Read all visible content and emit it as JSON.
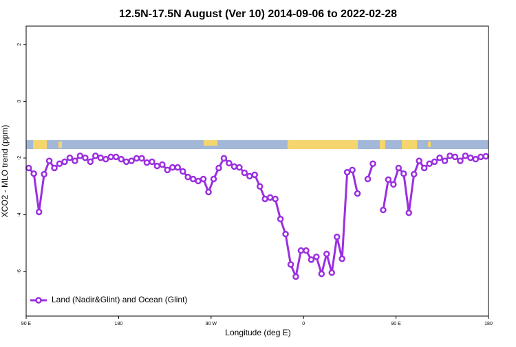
{
  "chart_data": {
    "type": "line",
    "title": "12.5N-17.5N August (Ver 10)   2014-09-06 to 2022-02-28",
    "x_label": "Longitude (deg E)",
    "y_label": "XCO2 - MLO trend (ppm)",
    "x": [
      92.5,
      97.5,
      102.5,
      107.5,
      112.5,
      117.5,
      122.5,
      127.5,
      132.5,
      137.5,
      142.5,
      147.5,
      152.5,
      157.5,
      162.5,
      167.5,
      172.5,
      177.5,
      182.5,
      187.5,
      192.5,
      197.5,
      202.5,
      207.5,
      212.5,
      217.5,
      222.5,
      227.5,
      232.5,
      237.5,
      242.5,
      247.5,
      252.5,
      257.5,
      262.5,
      267.5,
      272.5,
      277.5,
      282.5,
      287.5,
      292.5,
      297.5,
      302.5,
      307.5,
      312.5,
      317.5,
      322.5,
      327.5,
      332.5,
      337.5,
      342.5,
      347.5,
      352.5,
      357.5,
      362.5,
      367.5,
      372.5,
      377.5,
      382.5,
      387.5,
      392.5,
      397.5,
      402.5,
      407.5,
      412.5,
      417.5,
      422.5,
      427.5,
      432.5,
      437.5,
      442.5,
      447.5,
      452.5,
      457.5,
      462.5,
      467.5,
      472.5,
      477.5,
      482.5,
      487.5,
      492.5,
      497.5,
      502.5,
      507.5,
      512.5,
      517.5,
      522.5,
      527.5,
      532.5,
      537.5
    ],
    "series": [
      {
        "name": "Land (Nadir&Glint) and Ocean (Glint)",
        "color": "#9b2fe0",
        "values": [
          -2.35,
          -2.55,
          -3.9,
          -2.57,
          -2.1,
          -2.35,
          -2.2,
          -2.13,
          -1.99,
          -2.1,
          -1.92,
          -1.99,
          -2.13,
          -1.92,
          -1.99,
          -2.04,
          -1.96,
          -1.96,
          -2.04,
          -2.13,
          -2.1,
          -2.01,
          -2.01,
          -2.16,
          -2.13,
          -2.28,
          -2.23,
          -2.42,
          -2.33,
          -2.33,
          -2.47,
          -2.67,
          -2.74,
          -2.81,
          -2.74,
          -3.2,
          -2.74,
          -2.35,
          -2.01,
          -2.18,
          -2.3,
          -2.33,
          -2.52,
          -2.64,
          -2.59,
          -3.0,
          -3.44,
          -3.39,
          -3.44,
          -4.15,
          -4.68,
          -5.75,
          -6.18,
          -5.26,
          -5.26,
          -5.58,
          -5.48,
          -6.08,
          -5.38,
          -6.04,
          -4.78,
          -5.55,
          -2.5,
          -2.42,
          -3.25,
          null,
          -2.74,
          -2.2,
          null,
          -3.83,
          -2.76,
          -2.93,
          -2.35,
          -2.55,
          -3.93,
          -2.57,
          -2.1,
          -2.35,
          -2.2,
          -2.13,
          -1.99,
          -2.1,
          -1.92,
          -1.96,
          -2.1,
          -1.92,
          -1.99,
          -2.04,
          -1.96,
          -1.94
        ]
      }
    ],
    "xlim": [
      90,
      540
    ],
    "xticks": [
      {
        "value": 90,
        "label": "90 E"
      },
      {
        "value": 180,
        "label": "180"
      },
      {
        "value": 270,
        "label": "90 W"
      },
      {
        "value": 360,
        "label": "0"
      },
      {
        "value": 450,
        "label": "90 E"
      },
      {
        "value": 540,
        "label": "180"
      }
    ],
    "ylim": [
      -7.57,
      2.65
    ],
    "yticks": [
      2,
      0,
      -2,
      -4,
      -6
    ],
    "legend": "bottomleft"
  }
}
